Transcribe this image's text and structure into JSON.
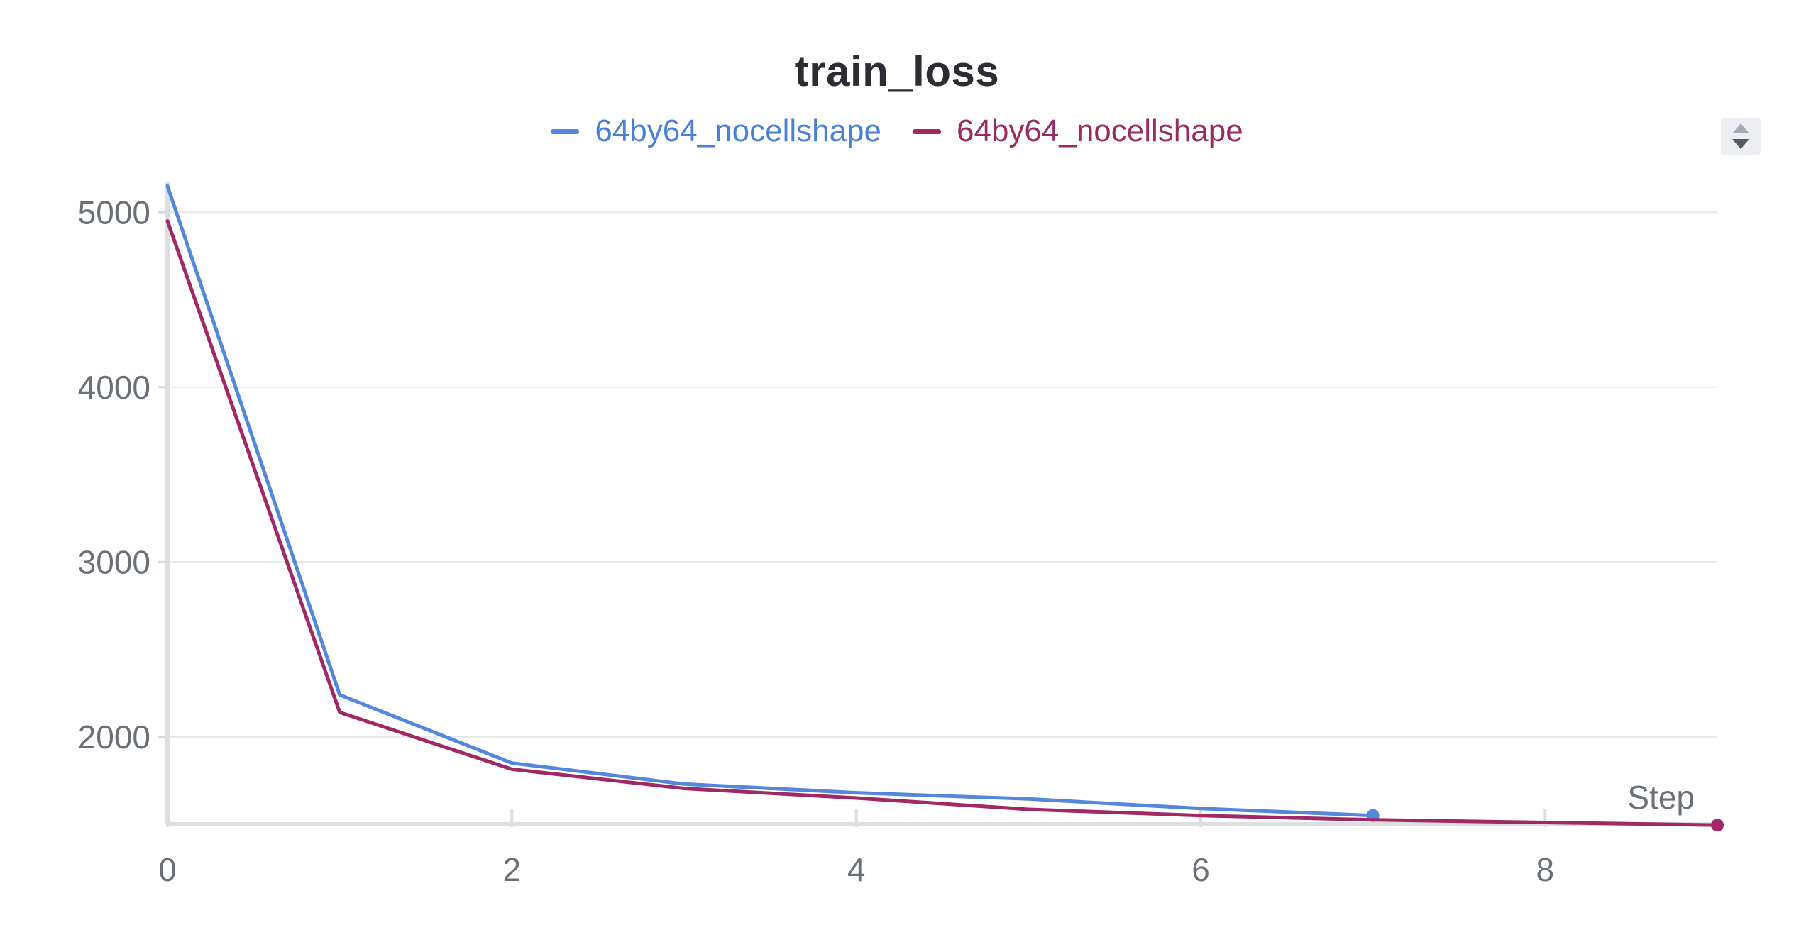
{
  "chart_data": {
    "type": "line",
    "title": "train_loss",
    "xlabel": "Step",
    "ylabel": "",
    "xlim": [
      0,
      9
    ],
    "ylim": [
      1500,
      5200
    ],
    "x_ticks": [
      "0",
      "2",
      "4",
      "6",
      "8"
    ],
    "y_ticks": [
      "2000",
      "3000",
      "4000",
      "5000"
    ],
    "grid": true,
    "legend_position": "top-center",
    "series": [
      {
        "name": "64by64_nocellshape",
        "color": "#5387dd",
        "x": [
          0,
          1,
          2,
          3,
          4,
          5,
          6,
          7
        ],
        "y": [
          5150,
          2240,
          1850,
          1730,
          1680,
          1645,
          1590,
          1550
        ]
      },
      {
        "name": "64by64_nocellshape",
        "color": "#a12864",
        "x": [
          0,
          1,
          2,
          3,
          4,
          5,
          6,
          7,
          8,
          9
        ],
        "y": [
          4950,
          2140,
          1815,
          1705,
          1650,
          1585,
          1550,
          1525,
          1510,
          1495
        ]
      }
    ]
  },
  "scroll_icon": "up-down-arrows-icon"
}
